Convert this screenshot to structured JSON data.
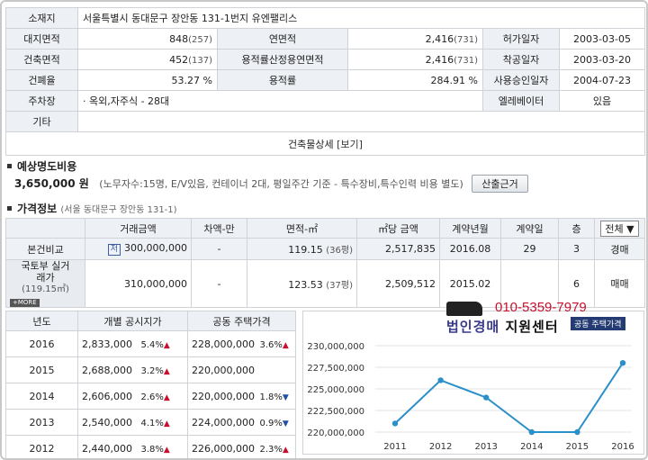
{
  "info": {
    "address_label": "소재지",
    "address": "서울특별시 동대문구 장안동 131-1번지 유엔팰리스",
    "rows": [
      {
        "l1": "대지면적",
        "v1": "848",
        "u1": "(257)",
        "l2": "연면적",
        "v2": "2,416",
        "u2": "(731)",
        "l3": "허가일자",
        "v3": "2003-03-05"
      },
      {
        "l1": "건축면적",
        "v1": "452",
        "u1": "(137)",
        "l2": "용적률산정용연면적",
        "v2": "2,416",
        "u2": "(731)",
        "l3": "착공일자",
        "v3": "2003-03-20"
      },
      {
        "l1": "건폐율",
        "v1": "53.27 %",
        "u1": "",
        "l2": "용적률",
        "v2": "284.91 %",
        "u2": "",
        "l3": "사용승인일자",
        "v3": "2004-07-23"
      }
    ],
    "parking_label": "주차장",
    "parking": "· 옥외,자주식 - 28대",
    "elevator_label": "엘레베이터",
    "elevator": "있음",
    "etc_label": "기타",
    "etc": "",
    "detail_label": "건축물상세",
    "detail_link": "[보기]"
  },
  "estimate": {
    "title": "예상명도비용",
    "amount": "3,650,000 원",
    "note": "(노무자수:15명, E/V있음, 컨테이너 2대, 평일주간 기준 - 특수장비,특수인력 비용 별도)",
    "button": "산출근거"
  },
  "price": {
    "title": "가격정보",
    "subtitle": "(서울 동대문구 장안동 131-1)",
    "headers": [
      "거래금액",
      "차액-만",
      "면적-㎡",
      "㎡당 금액",
      "계약년월",
      "계약일",
      "층"
    ],
    "filter": "전체 ▼",
    "rows": [
      {
        "label": "본건비교",
        "badge": "저",
        "amount": "300,000,000",
        "diff": "-",
        "area": "119.15",
        "area_py": "(36평)",
        "per_m2": "2,517,835",
        "ym": "2016.08",
        "day": "29",
        "floor": "3",
        "type": "경매"
      },
      {
        "label": "국토부 실거래가",
        "sub": "(119.15㎡)",
        "more": "+MORE",
        "amount": "310,000,000",
        "diff": "-",
        "area": "123.53",
        "area_py": "(37평)",
        "per_m2": "2,509,512",
        "ym": "2015.02",
        "day": "",
        "floor": "6",
        "type": "매매"
      }
    ]
  },
  "history": {
    "headers": [
      "년도",
      "개별 공시지가",
      "공동 주택가격"
    ],
    "rows": [
      {
        "year": "2016",
        "land": "2,833,000",
        "land_pct": "5.4%",
        "land_dir": "up",
        "house": "228,000,000",
        "house_pct": "3.6%",
        "house_dir": "up"
      },
      {
        "year": "2015",
        "land": "2,688,000",
        "land_pct": "3.2%",
        "land_dir": "up",
        "house": "220,000,000",
        "house_pct": "",
        "house_dir": ""
      },
      {
        "year": "2014",
        "land": "2,606,000",
        "land_pct": "2.6%",
        "land_dir": "up",
        "house": "220,000,000",
        "house_pct": "1.8%",
        "house_dir": "down"
      },
      {
        "year": "2013",
        "land": "2,540,000",
        "land_pct": "4.1%",
        "land_dir": "up",
        "house": "224,000,000",
        "house_pct": "0.9%",
        "house_dir": "down"
      },
      {
        "year": "2012",
        "land": "2,440,000",
        "land_pct": "3.8%",
        "land_dir": "up",
        "house": "226,000,000",
        "house_pct": "2.3%",
        "house_dir": "up"
      }
    ]
  },
  "watermark": {
    "phone": "010-5359-7979",
    "text_a": "법인경매",
    "text_b": "지원센터",
    "tag": "공동 주택가격"
  },
  "chart_data": {
    "type": "line",
    "x": [
      "2011",
      "2012",
      "2013",
      "2014",
      "2015",
      "2016"
    ],
    "series": [
      {
        "values": [
          221000000,
          226000000,
          224000000,
          220000000,
          220000000,
          228000000
        ]
      }
    ],
    "yticks": [
      "220,000,000",
      "222,500,000",
      "225,000,000",
      "227,500,000",
      "230,000,000"
    ],
    "ylim": [
      220000000,
      230000000
    ],
    "line_color": "#2b8fc9"
  }
}
